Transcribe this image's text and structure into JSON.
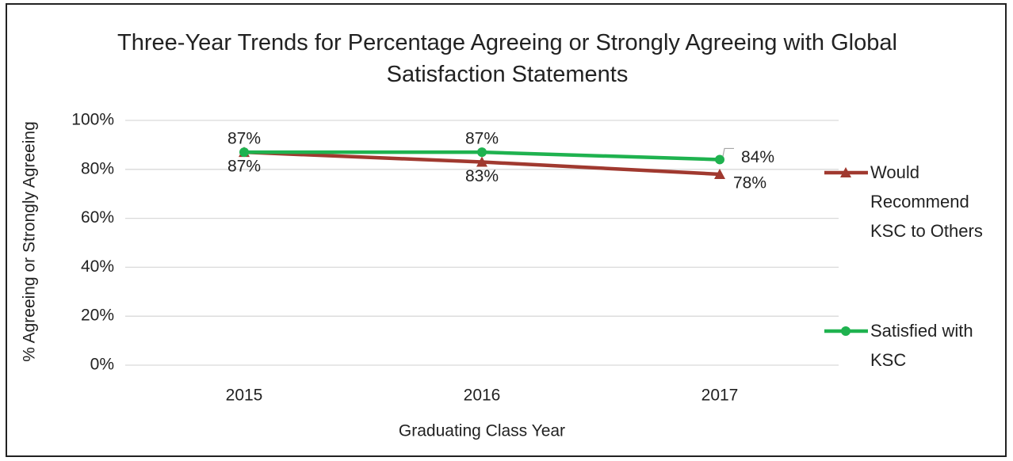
{
  "chart_data": {
    "type": "line",
    "title": "Three-Year Trends for Percentage Agreeing or Strongly Agreeing with Global Satisfaction Statements",
    "x_label": "Graduating Class Year",
    "y_label": "% Agreeing or Strongly Agreeing",
    "categories": [
      "2015",
      "2016",
      "2017"
    ],
    "series": [
      {
        "name": "Would Recommend KSC to Others",
        "color": "#a0392f",
        "marker": "triangle",
        "values": [
          87,
          83,
          78
        ],
        "value_labels": [
          "87%",
          "83%",
          "78%"
        ]
      },
      {
        "name": "Satisfied with KSC",
        "color": "#1fb24f",
        "marker": "circle",
        "values": [
          87,
          87,
          84
        ],
        "value_labels": [
          "87%",
          "87%",
          "84%"
        ]
      }
    ],
    "ylim": [
      0,
      100
    ],
    "yticks": [
      {
        "value": 0,
        "label": "0%"
      },
      {
        "value": 20,
        "label": "20%"
      },
      {
        "value": 40,
        "label": "40%"
      },
      {
        "value": 60,
        "label": "60%"
      },
      {
        "value": 80,
        "label": "80%"
      },
      {
        "value": 100,
        "label": "100%"
      }
    ],
    "grid": true,
    "legend": "right"
  }
}
